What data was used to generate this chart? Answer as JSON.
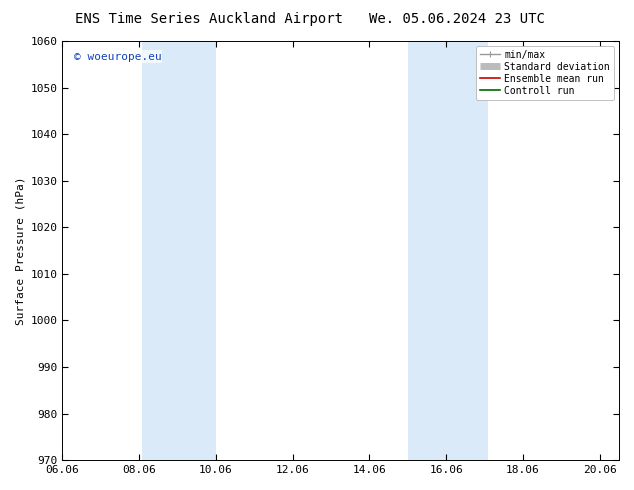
{
  "title_left": "ENS Time Series Auckland Airport",
  "title_right": "We. 05.06.2024 23 UTC",
  "ylabel": "Surface Pressure (hPa)",
  "ylim": [
    970,
    1060
  ],
  "yticks": [
    970,
    980,
    990,
    1000,
    1010,
    1020,
    1030,
    1040,
    1050,
    1060
  ],
  "xlim_start": 0.0,
  "xlim_end": 14.5,
  "xtick_positions": [
    0,
    2,
    4,
    6,
    8,
    10,
    12,
    14
  ],
  "xtick_labels": [
    "06.06",
    "08.06",
    "10.06",
    "12.06",
    "14.06",
    "16.06",
    "18.06",
    "20.06"
  ],
  "shade_bands": [
    {
      "x_start": 2.08,
      "x_end": 4.0
    },
    {
      "x_start": 9.0,
      "x_end": 11.08
    }
  ],
  "shade_color": "#daeaf8",
  "background_color": "#ffffff",
  "plot_bg_color": "#ffffff",
  "watermark": "© woeurope.eu",
  "watermark_color": "#1144bb",
  "legend_items": [
    {
      "label": "min/max",
      "color": "#999999",
      "lw": 1.0
    },
    {
      "label": "Standard deviation",
      "color": "#bbbbbb",
      "lw": 5
    },
    {
      "label": "Ensemble mean run",
      "color": "#cc0000",
      "lw": 1.2
    },
    {
      "label": "Controll run",
      "color": "#006600",
      "lw": 1.2
    }
  ],
  "title_fontsize": 10,
  "label_fontsize": 8,
  "tick_fontsize": 8,
  "legend_fontsize": 7,
  "watermark_fontsize": 8,
  "figsize": [
    6.34,
    4.9
  ],
  "dpi": 100
}
